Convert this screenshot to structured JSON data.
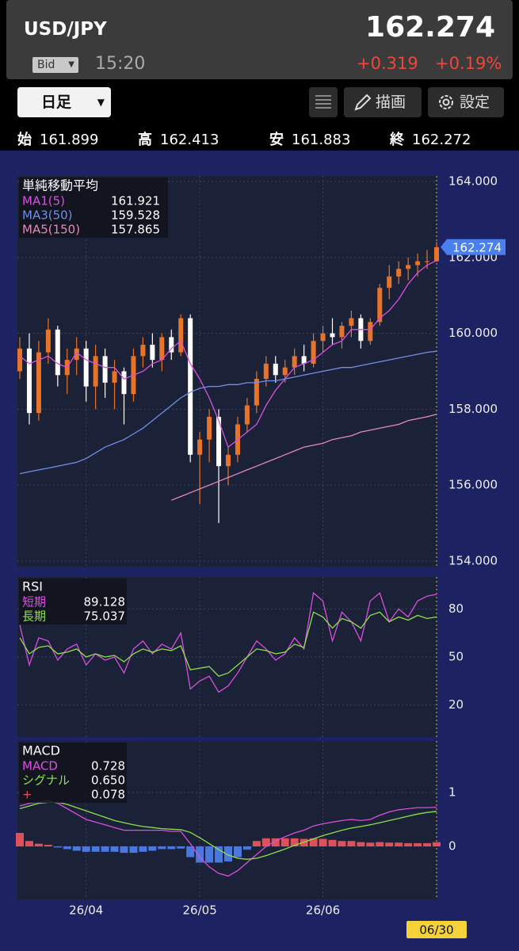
{
  "header": {
    "symbol": "USD/JPY",
    "price": "162.274",
    "quote_type": "Bid",
    "time": "15:20",
    "change": "+0.319",
    "change_pct": "+0.19%"
  },
  "toolbar": {
    "period": "日足",
    "draw": "描画",
    "settings": "設定"
  },
  "ohlc": [
    {
      "label": "始",
      "value": "161.899"
    },
    {
      "label": "高",
      "value": "162.413"
    },
    {
      "label": "安",
      "value": "161.883"
    },
    {
      "label": "終",
      "value": "162.272"
    }
  ],
  "chart_data": [
    {
      "type": "candlestick",
      "title": "単純移動平均",
      "categories": [
        null,
        null,
        null,
        null,
        null,
        null,
        null,
        "26/04",
        null,
        null,
        null,
        null,
        null,
        null,
        null,
        null,
        null,
        null,
        null,
        "26/05",
        null,
        null,
        null,
        null,
        null,
        null,
        null,
        null,
        null,
        null,
        null,
        null,
        "26/06",
        null,
        null,
        null,
        null,
        null,
        null,
        null,
        null,
        null,
        null,
        null,
        "06/30"
      ],
      "open": [
        159.0,
        159.6,
        157.9,
        159.5,
        160.1,
        158.9,
        159.3,
        159.6,
        158.6,
        159.4,
        158.7,
        159.0,
        158.4,
        159.4,
        159.7,
        159.3,
        159.9,
        159.5,
        160.4,
        156.8,
        157.2,
        157.8,
        156.5,
        156.8,
        157.6,
        158.1,
        158.8,
        159.2,
        158.9,
        159.1,
        159.4,
        159.2,
        159.8,
        160.0,
        159.9,
        160.2,
        160.4,
        159.8,
        160.3,
        161.2,
        161.5,
        161.7,
        161.8,
        161.9,
        161.899
      ],
      "high": [
        159.9,
        160.0,
        159.8,
        160.4,
        160.2,
        159.6,
        159.9,
        159.8,
        159.7,
        159.6,
        159.3,
        159.1,
        159.6,
        159.9,
        160.0,
        160.0,
        160.1,
        160.5,
        160.5,
        157.4,
        158.0,
        158.0,
        157.0,
        157.8,
        158.3,
        159.0,
        159.4,
        159.4,
        159.3,
        159.6,
        159.7,
        160.0,
        160.2,
        160.4,
        160.3,
        160.6,
        160.5,
        160.4,
        161.3,
        161.8,
        161.9,
        162.0,
        162.1,
        162.2,
        162.413
      ],
      "low": [
        158.8,
        157.6,
        157.7,
        159.2,
        158.6,
        158.4,
        158.9,
        158.2,
        158.0,
        158.3,
        158.0,
        157.6,
        158.2,
        159.1,
        159.1,
        159.0,
        159.3,
        159.4,
        156.6,
        155.5,
        156.6,
        155.0,
        156.0,
        156.6,
        157.4,
        157.9,
        158.6,
        158.7,
        158.7,
        158.9,
        159.0,
        159.1,
        159.5,
        159.7,
        159.6,
        159.9,
        159.6,
        159.7,
        160.2,
        160.9,
        161.3,
        161.4,
        161.5,
        161.7,
        161.883
      ],
      "close": [
        159.6,
        157.9,
        159.5,
        160.1,
        158.9,
        159.3,
        159.6,
        158.6,
        159.4,
        158.7,
        159.0,
        158.4,
        159.4,
        159.7,
        159.3,
        159.9,
        159.5,
        160.4,
        156.8,
        157.2,
        157.8,
        156.5,
        156.8,
        157.6,
        158.1,
        158.8,
        159.2,
        158.9,
        159.1,
        159.4,
        159.2,
        159.8,
        160.0,
        159.9,
        160.2,
        160.4,
        159.8,
        160.3,
        161.2,
        161.5,
        161.7,
        161.8,
        161.9,
        161.9,
        162.272
      ],
      "up_color": "#e8742a",
      "down_color": "#ffffff",
      "series": [
        {
          "name": "MA1(5)",
          "color": "#d94fe0",
          "legend_value": "161.921",
          "values": [
            159.4,
            159.2,
            159.3,
            159.4,
            159.2,
            159.1,
            159.5,
            159.3,
            159.2,
            159.1,
            159.1,
            158.8,
            158.9,
            159.0,
            159.2,
            159.3,
            159.6,
            159.8,
            159.2,
            158.8,
            158.3,
            157.7,
            157.0,
            157.2,
            157.4,
            157.6,
            158.1,
            158.5,
            158.8,
            159.1,
            159.2,
            159.3,
            159.5,
            159.7,
            159.8,
            160.1,
            160.1,
            160.1,
            160.4,
            160.6,
            160.9,
            161.3,
            161.6,
            161.8,
            161.921
          ]
        },
        {
          "name": "MA3(50)",
          "color": "#6f8fe8",
          "legend_value": "159.528",
          "values": [
            156.3,
            156.35,
            156.4,
            156.45,
            156.5,
            156.55,
            156.6,
            156.7,
            156.85,
            157.0,
            157.1,
            157.2,
            157.35,
            157.5,
            157.7,
            157.9,
            158.1,
            158.3,
            158.45,
            158.55,
            158.6,
            158.6,
            158.65,
            158.65,
            158.7,
            158.7,
            158.75,
            158.75,
            158.8,
            158.85,
            158.9,
            158.95,
            159.0,
            159.05,
            159.1,
            159.1,
            159.15,
            159.2,
            159.25,
            159.3,
            159.35,
            159.4,
            159.45,
            159.5,
            159.528
          ]
        },
        {
          "name": "MA5(150)",
          "color": "#e58ab8",
          "legend_value": "157.865",
          "values": [
            null,
            null,
            null,
            null,
            null,
            null,
            null,
            null,
            null,
            null,
            null,
            null,
            null,
            null,
            null,
            null,
            155.6,
            155.7,
            155.8,
            155.9,
            156.0,
            156.1,
            156.2,
            156.3,
            156.4,
            156.5,
            156.6,
            156.7,
            156.8,
            156.9,
            157.0,
            157.05,
            157.1,
            157.2,
            157.25,
            157.3,
            157.4,
            157.45,
            157.5,
            157.55,
            157.6,
            157.7,
            157.75,
            157.8,
            157.865
          ]
        }
      ],
      "ylim": [
        153.85,
        164.15
      ],
      "yticks": [
        {
          "value": 154,
          "label": "154.000"
        },
        {
          "value": 156,
          "label": "156.000"
        },
        {
          "value": 158,
          "label": "158.000"
        },
        {
          "value": 160,
          "label": "160.000"
        },
        {
          "value": 162,
          "label": "162.000"
        },
        {
          "value": 164,
          "label": "164.000"
        }
      ],
      "last_price": {
        "value": 162.274,
        "label": "162.274"
      },
      "tag_color": "#4a7ff0",
      "grid": true
    },
    {
      "type": "line",
      "title": "RSI",
      "series": [
        {
          "name": "短期",
          "color": "#d94fe0",
          "legend_value": "89.128",
          "values": [
            70,
            45,
            62,
            60,
            48,
            55,
            58,
            45,
            52,
            48,
            50,
            40,
            55,
            60,
            52,
            58,
            55,
            65,
            30,
            35,
            38,
            28,
            32,
            40,
            50,
            60,
            55,
            48,
            52,
            62,
            55,
            90,
            85,
            60,
            78,
            72,
            60,
            85,
            90,
            72,
            80,
            75,
            85,
            88,
            89.128
          ]
        },
        {
          "name": "長期",
          "color": "#8ee04a",
          "legend_value": "75.037",
          "values": [
            62,
            52,
            56,
            57,
            52,
            53,
            55,
            50,
            52,
            50,
            51,
            47,
            52,
            55,
            53,
            55,
            54,
            57,
            42,
            43,
            44,
            38,
            40,
            45,
            50,
            55,
            54,
            52,
            53,
            58,
            56,
            78,
            75,
            68,
            74,
            72,
            68,
            76,
            78,
            72,
            75,
            73,
            76,
            74,
            75.037
          ]
        }
      ],
      "ylim": [
        0,
        100
      ],
      "yticks": [
        20,
        50,
        80
      ],
      "grid": true
    },
    {
      "type": "macd",
      "title": "MACD",
      "series": [
        {
          "name": "MACD",
          "color": "#d94fe0",
          "legend_value": "0.728",
          "values": [
            0.75,
            0.8,
            0.82,
            0.85,
            0.8,
            0.7,
            0.6,
            0.5,
            0.45,
            0.4,
            0.35,
            0.3,
            0.3,
            0.3,
            0.3,
            0.3,
            0.28,
            0.28,
            0.05,
            -0.2,
            -0.38,
            -0.5,
            -0.55,
            -0.45,
            -0.3,
            -0.15,
            0.0,
            0.1,
            0.18,
            0.25,
            0.3,
            0.38,
            0.42,
            0.45,
            0.48,
            0.5,
            0.48,
            0.5,
            0.58,
            0.64,
            0.68,
            0.7,
            0.72,
            0.72,
            0.728
          ]
        },
        {
          "name": "シグナル",
          "color": "#8ee04a",
          "legend_value": "0.650",
          "values": [
            0.7,
            0.75,
            0.8,
            0.82,
            0.82,
            0.78,
            0.72,
            0.66,
            0.6,
            0.54,
            0.48,
            0.44,
            0.4,
            0.37,
            0.35,
            0.33,
            0.32,
            0.31,
            0.26,
            0.16,
            0.05,
            -0.06,
            -0.16,
            -0.22,
            -0.24,
            -0.22,
            -0.17,
            -0.11,
            -0.05,
            0.02,
            0.08,
            0.14,
            0.2,
            0.25,
            0.3,
            0.34,
            0.37,
            0.4,
            0.44,
            0.48,
            0.52,
            0.56,
            0.6,
            0.63,
            0.65
          ]
        },
        {
          "name": "+",
          "color": "#e0505a",
          "negative_color": "#4a78e0",
          "legend_value": "0.078",
          "histogram": true,
          "values": [
            0.25,
            0.1,
            0.05,
            0.03,
            -0.02,
            -0.05,
            -0.08,
            -0.1,
            -0.1,
            -0.1,
            -0.1,
            -0.12,
            -0.12,
            -0.1,
            -0.08,
            -0.05,
            -0.05,
            -0.04,
            -0.2,
            -0.3,
            -0.3,
            -0.3,
            -0.28,
            -0.2,
            -0.06,
            0.1,
            0.15,
            0.15,
            0.15,
            0.15,
            0.14,
            0.15,
            0.14,
            0.12,
            0.1,
            0.1,
            0.08,
            0.07,
            0.08,
            0.07,
            0.07,
            0.06,
            0.06,
            0.06,
            0.078
          ]
        }
      ],
      "ylim": [
        -0.985,
        1.956
      ],
      "yticks": [
        0,
        1
      ],
      "grid": true
    }
  ]
}
